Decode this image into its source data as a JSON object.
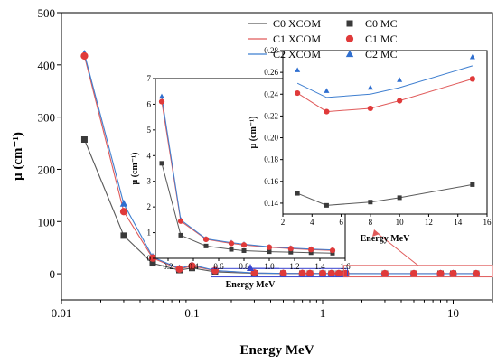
{
  "chart_data": [
    {
      "id": "main",
      "type": "line+scatter",
      "xscale": "log",
      "xlabel": "Energy MeV",
      "ylabel": "μ (cm⁻¹)",
      "xlim": [
        0.01,
        20
      ],
      "ylim": [
        -50,
        500
      ],
      "xticks": [
        0.01,
        0.1,
        1,
        10
      ],
      "xtick_labels": [
        "0.01",
        "0.1",
        "1",
        "10"
      ],
      "yticks": [
        0,
        100,
        200,
        300,
        400,
        500
      ],
      "legend": {
        "placement": "top-right",
        "entries": [
          {
            "label": "C0 XCOM",
            "kind": "line",
            "series": 0
          },
          {
            "label": "C1 XCOM",
            "kind": "line",
            "series": 1
          },
          {
            "label": "C2 XCOM",
            "kind": "line",
            "series": 2
          },
          {
            "label": "C0 MC",
            "kind": "square",
            "series": 0
          },
          {
            "label": "C1 MC",
            "kind": "circle",
            "series": 1
          },
          {
            "label": "C2 MC",
            "kind": "triangle",
            "series": 2
          }
        ]
      },
      "x": [
        0.015,
        0.03,
        0.05,
        0.08,
        0.1,
        0.15,
        0.3,
        0.5,
        0.7,
        0.8,
        1.0,
        1.17,
        1.33,
        1.5,
        3,
        5,
        8,
        10,
        15
      ],
      "series": [
        {
          "color": "#5a5a5a",
          "values": [
            257,
            73,
            20,
            7,
            11,
            3.7,
            0.9,
            0.48,
            0.35,
            0.3,
            0.26,
            0.24,
            0.22,
            0.2,
            0.149,
            0.138,
            0.141,
            0.145,
            0.157
          ]
        },
        {
          "color": "#e05a5a",
          "values": [
            417,
            119,
            30,
            9,
            15,
            6.1,
            1.45,
            0.74,
            0.58,
            0.52,
            0.43,
            0.38,
            0.34,
            0.31,
            0.241,
            0.224,
            0.227,
            0.234,
            0.254
          ]
        },
        {
          "color": "#3f7fd0",
          "values": [
            421,
            134,
            32,
            10,
            17,
            6.3,
            1.5,
            0.76,
            0.61,
            0.55,
            0.45,
            0.4,
            0.36,
            0.33,
            0.262,
            0.243,
            0.246,
            0.253,
            0.274
          ]
        }
      ],
      "marker_colors": [
        "#3a3a3a",
        "#e03a3a",
        "#2f6fd0"
      ],
      "highlight_boxes": [
        {
          "x": [
            0.14,
            1.55
          ],
          "y": [
            -6,
            10
          ],
          "color": "#3a46d0"
        },
        {
          "x": [
            1.45,
            20
          ],
          "y": [
            -6,
            16
          ],
          "color": "#e05a5a"
        }
      ]
    },
    {
      "id": "inset1",
      "type": "line+scatter",
      "xlabel": "Energy MeV",
      "ylabel": "μ (cm⁻¹)",
      "xlim": [
        0.1,
        1.6
      ],
      "ylim": [
        0,
        7
      ],
      "xticks": [
        0.2,
        0.4,
        0.6,
        0.8,
        1.0,
        1.2,
        1.4,
        1.6
      ],
      "xtick_labels": [
        "0.2",
        "0.4",
        "0.6",
        "0.8",
        "1.0",
        "1.2",
        "1.4",
        "1.6"
      ],
      "yticks": [
        0,
        1,
        2,
        3,
        4,
        5,
        6,
        7
      ],
      "x": [
        0.15,
        0.3,
        0.5,
        0.7,
        0.8,
        1.0,
        1.17,
        1.33,
        1.5
      ],
      "series": [
        {
          "values": [
            3.7,
            0.9,
            0.48,
            0.35,
            0.3,
            0.26,
            0.24,
            0.22,
            0.2
          ]
        },
        {
          "values": [
            6.1,
            1.45,
            0.74,
            0.58,
            0.52,
            0.43,
            0.38,
            0.34,
            0.31
          ]
        },
        {
          "values": [
            6.3,
            1.5,
            0.76,
            0.61,
            0.55,
            0.45,
            0.4,
            0.36,
            0.33
          ]
        }
      ]
    },
    {
      "id": "inset2",
      "type": "line+scatter",
      "xlabel": "Energy MeV",
      "ylabel": "μ (cm⁻¹)",
      "xlim": [
        2,
        16
      ],
      "ylim": [
        0.13,
        0.28
      ],
      "xticks": [
        2,
        4,
        6,
        8,
        10,
        12,
        14,
        16
      ],
      "xtick_labels": [
        "2",
        "4",
        "6",
        "8",
        "10",
        "12",
        "14",
        "16"
      ],
      "yticks": [
        0.14,
        0.16,
        0.18,
        0.2,
        0.22,
        0.24,
        0.26,
        0.28
      ],
      "ytick_labels": [
        "0.14",
        "0.16",
        "0.18",
        "0.20",
        "0.22",
        "0.24",
        "0.26",
        "0.28"
      ],
      "x": [
        3,
        5,
        8,
        10,
        15
      ],
      "series": [
        {
          "values": [
            0.149,
            0.138,
            0.141,
            0.145,
            0.157
          ]
        },
        {
          "values": [
            0.241,
            0.224,
            0.227,
            0.234,
            0.254
          ]
        },
        {
          "values": [
            0.262,
            0.243,
            0.246,
            0.253,
            0.274
          ]
        }
      ],
      "line_values": [
        [
          0.149,
          0.138,
          0.141,
          0.145,
          0.157
        ],
        [
          0.241,
          0.224,
          0.227,
          0.234,
          0.254
        ],
        [
          0.25,
          0.237,
          0.24,
          0.246,
          0.266
        ]
      ]
    }
  ]
}
